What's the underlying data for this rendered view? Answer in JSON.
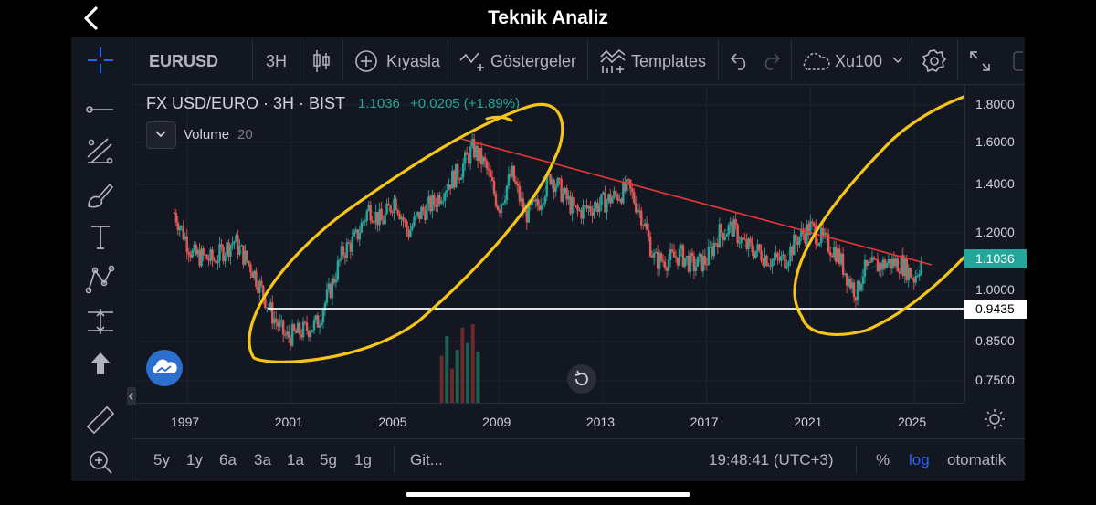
{
  "header": {
    "title": "Teknik Analiz"
  },
  "toolbar": {
    "symbol": "EURUSD",
    "interval": "3H",
    "compare_label": "Kıyasla",
    "indicators_label": "Göstergeler",
    "templates_label": "Templates",
    "layout_label": "Xu100"
  },
  "legend": {
    "title": "FX USD/EURO · 3H · BIST",
    "price": "1.1036",
    "change": "+0.0205 (+1.89%)",
    "volume_label": "Volume",
    "volume_value": "20"
  },
  "price_scale": {
    "ticks": [
      "1.8000",
      "1.6000",
      "1.4000",
      "1.2000",
      "1.0000",
      "0.8500",
      "0.7500"
    ],
    "last_price_tag": "1.1036",
    "line_tag": "0.9435"
  },
  "time_axis": {
    "labels": [
      "1997",
      "2001",
      "2005",
      "2009",
      "2013",
      "2017",
      "2021",
      "2025"
    ]
  },
  "bottom_bar": {
    "ranges": [
      "5y",
      "1y",
      "6a",
      "3a",
      "1a",
      "5g",
      "1g"
    ],
    "goto_label": "Git...",
    "clock": "19:48:41 (UTC+3)",
    "percent_label": "%",
    "log_label": "log",
    "auto_label": "otomatik"
  },
  "colors": {
    "background": "#131722",
    "up": "#26a69a",
    "down": "#ef5350",
    "trendline": "#e53935",
    "annotation": "#f5c518",
    "horizontal_line": "#ffffff",
    "active": "#2962ff"
  },
  "chart_data": {
    "type": "line",
    "scale": "log",
    "ylim": [
      0.72,
      1.85
    ],
    "series": [
      {
        "x": [
          1996.5,
          1997.2,
          1998,
          1998.8,
          1999.5,
          2000.3,
          2000.8,
          2001.5,
          2002,
          2002.5,
          2003,
          2003.5,
          2004,
          2004.5,
          2005,
          2005.5,
          2006,
          2006.5,
          2007,
          2007.5,
          2008,
          2008.5,
          2009,
          2009.5,
          2010,
          2010.5,
          2011,
          2011.5,
          2012,
          2012.5,
          2013,
          2013.5,
          2014,
          2014.5,
          2015,
          2015.5,
          2016,
          2016.5,
          2017,
          2017.5,
          2018,
          2018.5,
          2019,
          2019.5,
          2020,
          2020.5,
          2021,
          2021.5,
          2022,
          2022.5,
          2022.8,
          2023,
          2023.5,
          2024,
          2024.5,
          2025,
          2025.3
        ],
        "y": [
          1.28,
          1.12,
          1.1,
          1.17,
          1.07,
          0.92,
          0.86,
          0.88,
          0.9,
          1.0,
          1.13,
          1.18,
          1.3,
          1.24,
          1.34,
          1.2,
          1.28,
          1.32,
          1.4,
          1.46,
          1.57,
          1.48,
          1.3,
          1.45,
          1.27,
          1.31,
          1.44,
          1.35,
          1.28,
          1.3,
          1.32,
          1.35,
          1.38,
          1.27,
          1.1,
          1.1,
          1.12,
          1.08,
          1.1,
          1.2,
          1.22,
          1.15,
          1.13,
          1.1,
          1.1,
          1.18,
          1.22,
          1.17,
          1.13,
          1.03,
          0.99,
          1.06,
          1.08,
          1.09,
          1.09,
          1.04,
          1.1036
        ]
      }
    ],
    "volume": {
      "x": [
        2006.8,
        2007.0,
        2007.2,
        2007.4,
        2007.6,
        2007.8,
        2008.0,
        2008.2
      ],
      "values": [
        55,
        78,
        40,
        62,
        88,
        70,
        92,
        60
      ]
    },
    "annotations": [
      "trendline",
      "horizontal line 0.9435",
      "freehand ellipses"
    ]
  }
}
